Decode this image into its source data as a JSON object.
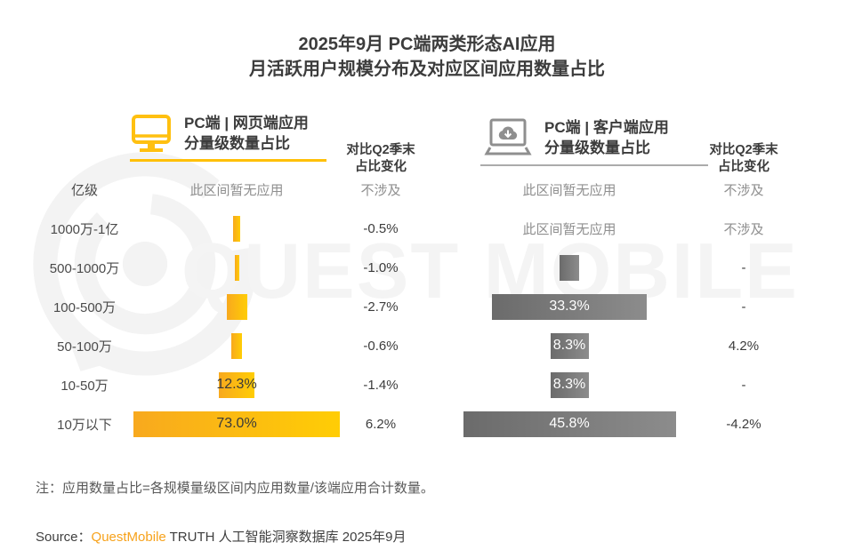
{
  "title": {
    "line1": "2025年9月 PC端两类形态AI应用",
    "line2": "月活跃用户规模分布及对应区间应用数量占比"
  },
  "watermark": "QUEST MOBILE",
  "panels": {
    "web": {
      "icon": "monitor-icon",
      "title_line1": "PC端 | 网页端应用",
      "title_line2": "分量级数量占比",
      "change_header_line1": "对比Q2季末",
      "change_header_line2": "占比变化"
    },
    "client": {
      "icon": "laptop-download-icon",
      "title_line1": "PC端 | 客户端应用",
      "title_line2": "分量级数量占比",
      "change_header_line1": "对比Q2季末",
      "change_header_line2": "占比变化"
    }
  },
  "chart_data": {
    "type": "bar",
    "orientation": "horizontal",
    "categories": [
      "亿级",
      "1000万-1亿",
      "500-1000万",
      "100-500万",
      "50-100万",
      "10-50万",
      "10万以下"
    ],
    "no_app_text": "此区间暂无应用",
    "not_applicable_text": "不涉及",
    "series": [
      {
        "name": "PC端 | 网页端应用 分量级数量占比",
        "values": [
          null,
          2.5,
          1.5,
          7.0,
          3.7,
          12.3,
          73.0
        ],
        "bar_labels": [
          "",
          "",
          "",
          "",
          "",
          "12.3%",
          "73.0%"
        ],
        "changes_vs_q2": [
          "不涉及",
          "-0.5%",
          "-1.0%",
          "-2.7%",
          "-0.6%",
          "-1.4%",
          "6.2%"
        ],
        "unlabeled_values_estimated_from_bar_width": true
      },
      {
        "name": "PC端 | 客户端应用 分量级数量占比",
        "values": [
          null,
          null,
          4.2,
          33.3,
          8.3,
          8.3,
          45.8
        ],
        "bar_labels": [
          "",
          "",
          "",
          "33.3%",
          "8.3%",
          "8.3%",
          "45.8%"
        ],
        "changes_vs_q2": [
          "不涉及",
          "不涉及",
          "-",
          "-",
          "4.2%",
          "-",
          "-4.2%"
        ],
        "unlabeled_values_estimated_from_bar_width": true
      }
    ],
    "legend_position": "none",
    "grid": false
  },
  "colors": {
    "web_bar_start": "#F8A91E",
    "web_bar_end": "#FFCD05",
    "client_bar_start": "#6B6B6B",
    "client_bar_end": "#8C8C8C",
    "accent_yellow": "#FFC007",
    "underline_gray": "#ABABAB",
    "brand_orange": "#F7A21B",
    "dark_text": "#3C3C3C",
    "muted_text": "#8F8F8F"
  },
  "note": "注：应用数量占比=各规模量级区间内应用数量/该端应用合计数量。",
  "source": {
    "label": "Source：",
    "brand": "QuestMobile",
    "rest": " TRUTH 人工智能洞察数据库 2025年9月"
  }
}
